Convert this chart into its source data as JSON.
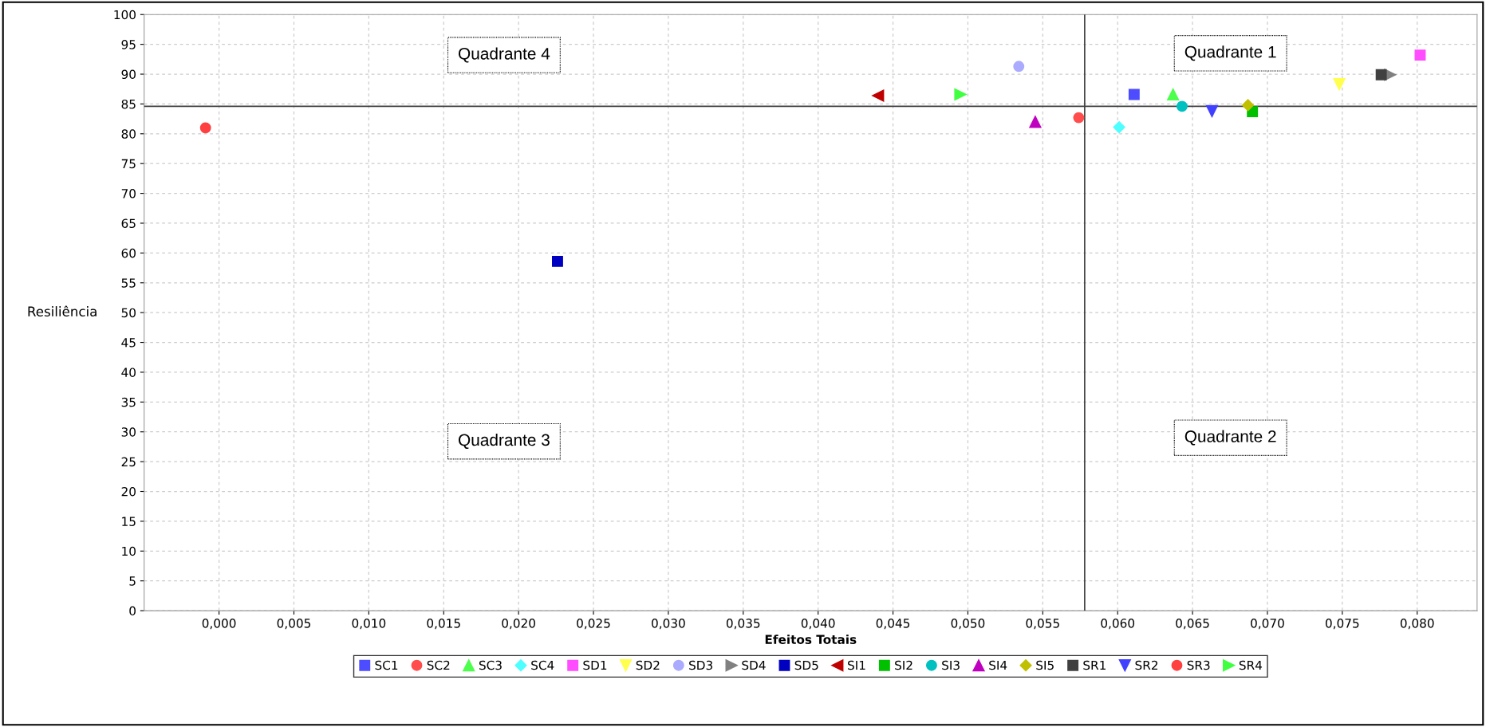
{
  "chart_data": {
    "type": "scatter",
    "xlabel": "Efeitos Totais",
    "ylabel": "Resiliência",
    "xlim": [
      -0.005,
      0.084
    ],
    "ylim": [
      0,
      100
    ],
    "xticks": [
      {
        "value": 0.0,
        "label": "0,000"
      },
      {
        "value": 0.005,
        "label": "0,005"
      },
      {
        "value": 0.01,
        "label": "0,010"
      },
      {
        "value": 0.015,
        "label": "0,015"
      },
      {
        "value": 0.02,
        "label": "0,020"
      },
      {
        "value": 0.025,
        "label": "0,025"
      },
      {
        "value": 0.03,
        "label": "0,030"
      },
      {
        "value": 0.035,
        "label": "0,035"
      },
      {
        "value": 0.04,
        "label": "0,040"
      },
      {
        "value": 0.045,
        "label": "0,045"
      },
      {
        "value": 0.05,
        "label": "0,050"
      },
      {
        "value": 0.055,
        "label": "0,055"
      },
      {
        "value": 0.06,
        "label": "0,060"
      },
      {
        "value": 0.065,
        "label": "0,065"
      },
      {
        "value": 0.07,
        "label": "0,070"
      },
      {
        "value": 0.075,
        "label": "0,075"
      },
      {
        "value": 0.08,
        "label": "0,080"
      }
    ],
    "yticks": [
      0,
      5,
      10,
      15,
      20,
      25,
      30,
      35,
      40,
      45,
      50,
      55,
      60,
      65,
      70,
      75,
      80,
      85,
      90,
      95,
      100
    ],
    "grid": true,
    "legend": "bottom",
    "annotations": [
      "Quadrante 4",
      "Quadrante 1",
      "Quadrante 3",
      "Quadrante 2"
    ],
    "ref_lines": [
      {
        "axis": "x",
        "value": 0.0578,
        "color": "#404040"
      },
      {
        "axis": "y",
        "value": 84.6,
        "color": "#404040"
      }
    ],
    "series": [
      {
        "name": "SC1",
        "color": "#4d4dff",
        "marker": "square",
        "x": [
          0.0611
        ],
        "values": [
          86.6
        ]
      },
      {
        "name": "SC2",
        "color": "#ff4d4d",
        "marker": "circle",
        "x": [
          0.0574
        ],
        "values": [
          82.7
        ]
      },
      {
        "name": "SC3",
        "color": "#4dff4d",
        "marker": "triangle",
        "x": [
          0.0637
        ],
        "values": [
          86.6
        ]
      },
      {
        "name": "SC4",
        "color": "#4dffff",
        "marker": "diamond",
        "x": [
          0.0601
        ],
        "values": [
          81.1
        ]
      },
      {
        "name": "SD1",
        "color": "#ff4dff",
        "marker": "square",
        "x": [
          0.0802
        ],
        "values": [
          93.2
        ]
      },
      {
        "name": "SD2",
        "color": "#ffff4d",
        "marker": "triangle-down",
        "x": [
          0.0748
        ],
        "values": [
          88.3
        ]
      },
      {
        "name": "SD3",
        "color": "#aaaaff",
        "marker": "circle",
        "x": [
          0.0534
        ],
        "values": [
          91.3
        ]
      },
      {
        "name": "SD4",
        "color": "#808080",
        "marker": "triangle-right",
        "x": [
          0.0782
        ],
        "values": [
          89.9
        ]
      },
      {
        "name": "SD5",
        "color": "#0000c0",
        "marker": "square",
        "x": [
          0.0226
        ],
        "values": [
          58.6
        ]
      },
      {
        "name": "SI1",
        "color": "#c00000",
        "marker": "triangle-left",
        "x": [
          0.044
        ],
        "values": [
          86.4
        ]
      },
      {
        "name": "SI2",
        "color": "#00c000",
        "marker": "square",
        "x": [
          0.069
        ],
        "values": [
          83.7
        ]
      },
      {
        "name": "SI3",
        "color": "#00c0c0",
        "marker": "circle",
        "x": [
          0.0643
        ],
        "values": [
          84.6
        ]
      },
      {
        "name": "SI4",
        "color": "#c000c0",
        "marker": "triangle",
        "x": [
          0.0545
        ],
        "values": [
          82.0
        ]
      },
      {
        "name": "SI5",
        "color": "#c0c000",
        "marker": "diamond",
        "x": [
          0.0687
        ],
        "values": [
          84.8
        ]
      },
      {
        "name": "SR1",
        "color": "#404040",
        "marker": "square",
        "x": [
          0.0776
        ],
        "values": [
          89.9
        ]
      },
      {
        "name": "SR2",
        "color": "#4040ff",
        "marker": "triangle-down",
        "x": [
          0.0663
        ],
        "values": [
          83.8
        ]
      },
      {
        "name": "SR3",
        "color": "#ff4040",
        "marker": "circle",
        "x": [
          -0.0009
        ],
        "values": [
          81.0
        ]
      },
      {
        "name": "SR4",
        "color": "#40ff40",
        "marker": "triangle-right",
        "x": [
          0.0495
        ],
        "values": [
          86.6
        ]
      }
    ]
  }
}
